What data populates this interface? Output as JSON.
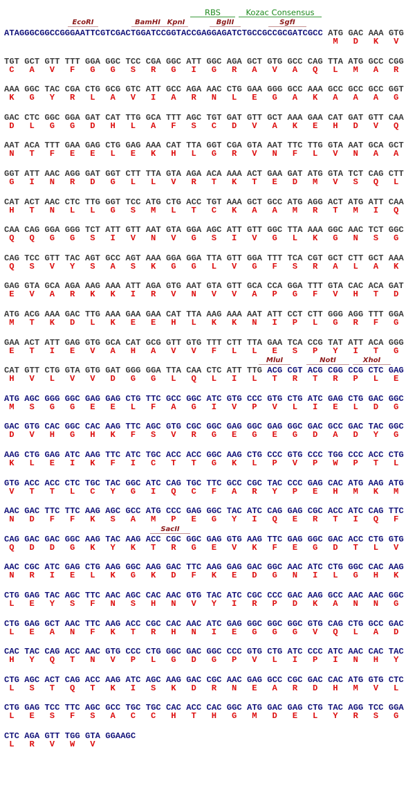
{
  "colors": {
    "sequence_plain": "#3c3c3c",
    "sequence_vector": "#14147a",
    "amino_acid": "#dd1111",
    "enzyme": "#8b1a1a",
    "feature": "#1f8a1f"
  },
  "features": {
    "rbs": "RBS",
    "kozak": "Kozac Consensus"
  },
  "enzymes": {
    "ecori": "EcoRI",
    "bamhi": "BamHI",
    "kpni": "KpnI",
    "bglii": "BglII",
    "sgfi": "SgfI",
    "mlui": "MluI",
    "noti": "NotI",
    "xhoi": "XhoI",
    "sacii": "SacII"
  },
  "leader": "ATAGGGCGGCCGGGAATTCGTCGACTGGATCCGGTACCGAGGAGATCTGCCGCCGCGATCGCC",
  "rows": [
    {
      "codons": "ATG GAC AAA GTG",
      "aa": "M D K V"
    },
    {
      "codons": "TGT GCT GTT TTT GGA GGC TCC CGA GGC ATT GGC AGA GCT GTG GCC CAG TTA ATG GCC CGG",
      "aa": "C A V F G G S R G I G R A V A Q L M A R"
    },
    {
      "codons": "AAA GGC TAC CGA CTG GCG GTC ATT GCC AGA AAC CTG GAA GGG GCC AAA GCC GCC GCC GGT",
      "aa": "K G Y R L A V I A R N L E G A K A A A G"
    },
    {
      "codons": "GAC CTC GGC GGA GAT CAT TTG GCA TTT AGC TGT GAT GTT GCT AAA GAA CAT GAT GTT CAA",
      "aa": "D L G G D H L A F S C D V A K E H D V Q"
    },
    {
      "codons": "AAT ACA TTT GAA GAG CTG GAG AAA CAT TTA GGT CGA GTA AAT TTC TTG GTA AAT GCA GCT",
      "aa": "N T F E E L E K H L G R V N F L V N A A"
    },
    {
      "codons": "GGT ATT AAC AGG GAT GGT CTT TTA GTA AGA ACA AAA ACT GAA GAT ATG GTA TCT CAG CTT",
      "aa": "G I N R D G L L V R T K T E D M V S Q L"
    },
    {
      "codons": "CAT ACT AAC CTC TTG GGT TCC ATG CTG ACC TGT AAA GCT GCC ATG AGG ACT ATG ATT CAA",
      "aa": "H T N L L G S M L T C K A A M R T M I Q"
    },
    {
      "codons": "CAA CAG GGA GGG TCT ATT GTT AAT GTA GGA AGC ATT GTT GGC TTA AAA GGC AAC TCT GGC",
      "aa": "Q Q G G S I V N V G S I V G L K G N S G"
    },
    {
      "codons": "CAG TCC GTT TAC AGT GCC AGT AAA GGA GGA TTA GTT GGA TTT TCA CGT GCT CTT GCT AAA",
      "aa": "Q S V Y S A S K G G L V G F S R A L A K"
    },
    {
      "codons": "GAG GTA GCA AGA AAG AAA ATT AGA GTG AAT GTA GTT GCA CCA GGA TTT GTA CAC ACA GAT",
      "aa": "E V A R K K I R V N V V A P G F V H T D"
    },
    {
      "codons": "ATG ACG AAA GAC TTG AAA GAA GAA CAT TTA AAG AAA AAT ATT CCT CTT GGG AGG TTT GGA",
      "aa": "M T K D L K E E H L K K N I P L G R F G"
    },
    {
      "codons": "GAA ACT ATT GAG GTG GCA CAT GCG GTT GTG TTT CTT TTA GAA TCA CCG TAT ATT ACA GGG",
      "aa": "E T I E V A H A V V F L L E S P Y I T G"
    },
    {
      "codons": "CAT GTT CTG GTA GTG GAT GGG GGA TTA CAA CTC ATT TTG ACG CGT ACG CGG CCG CTC GAG",
      "aa": "H V L V V D G G L Q L I L T R T R P L E"
    },
    {
      "codons": "ATG AGC GGG GGC GAG GAG CTG TTC GCC GGC ATC GTG CCC GTG CTG ATC GAG CTG GAC GGC",
      "aa": "M S G G E E L F A G I V P V L I E L D G"
    },
    {
      "codons": "GAC GTG CAC GGC CAC AAG TTC AGC GTG CGC GGC GAG GGC GAG GGC GAC GCC GAC TAC GGC",
      "aa": "D V H G H K F S V R G E G E G D A D Y G"
    },
    {
      "codons": "AAG CTG GAG ATC AAG TTC ATC TGC ACC ACC GGC AAG CTG CCC GTG CCC TGG CCC ACC CTG",
      "aa": "K L E I K F I C T T G K L P V P W P T L"
    },
    {
      "codons": "GTG ACC ACC CTC TGC TAC GGC ATC CAG TGC TTC GCC CGC TAC CCC GAG CAC ATG AAG ATG",
      "aa": "V T T L C Y G I Q C F A R Y P E H M K M"
    },
    {
      "codons": "AAC GAC TTC TTC AAG AGC GCC ATG CCC GAG GGC TAC ATC CAG GAG CGC ACC ATC CAG TTC",
      "aa": "N D F F K S A M P E G Y I Q E R T I Q F"
    },
    {
      "codons": "CAG GAC GAC GGC AAG TAC AAG ACC CGC GGC GAG GTG AAG TTC GAG GGC GAC ACC CTG GTG",
      "aa": "Q D D G K Y K T R G E V K F E G D T L V"
    },
    {
      "codons": "AAC CGC ATC GAG CTG AAG GGC AAG GAC TTC AAG GAG GAC GGC AAC ATC CTG GGC CAC AAG",
      "aa": "N R I E L K G K D F K E D G N I L G H K"
    },
    {
      "codons": "CTG GAG TAC AGC TTC AAC AGC CAC AAC GTG TAC ATC CGC CCC GAC AAG GCC AAC AAC GGC",
      "aa": "L E Y S F N S H N V Y I R P D K A N N G"
    },
    {
      "codons": "CTG GAG GCT AAC TTC AAG ACC CGC CAC AAC ATC GAG GGC GGC GGC GTG CAG CTG GCC GAC",
      "aa": "L E A N F K T R H N I E G G G V Q L A D"
    },
    {
      "codons": "CAC TAC CAG ACC AAC GTG CCC CTG GGC GAC GGC CCC GTG CTG ATC CCC ATC AAC CAC TAC",
      "aa": "H Y Q T N V P L G D G P V L I P I N H Y"
    },
    {
      "codons": "CTG AGC ACT CAG ACC AAG ATC AGC AAG GAC CGC AAC GAG GCC CGC GAC CAC ATG GTG CTC",
      "aa": "L S T Q T K I S K D R N E A R D H M V L"
    },
    {
      "codons": "CTG GAG TCC TTC AGC GCC TGC TGC CAC ACC CAC GGC ATG GAC GAG CTG TAC AGG TCC GGA",
      "aa": "L E S F S A C C H T H G M D E L Y R S G"
    },
    {
      "codons": "CTC AGA GTT TGG GTA GGAAGC",
      "aa": "L R V W V"
    }
  ]
}
